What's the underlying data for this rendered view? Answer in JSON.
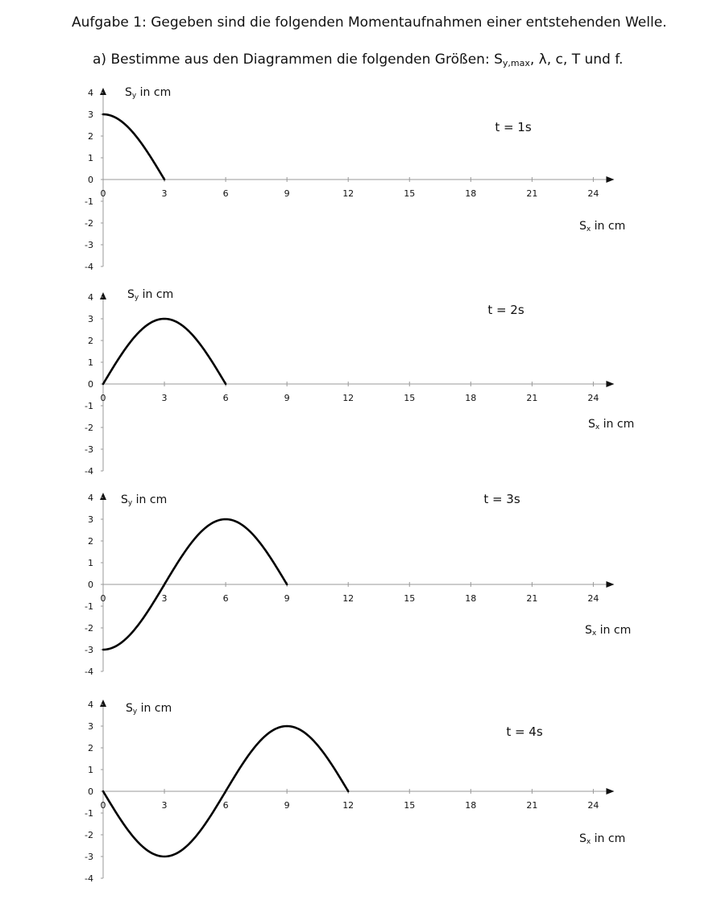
{
  "task": {
    "title": "Aufgabe 1: Gegeben sind die folgenden Momentaufnahmen einer entstehenden Welle.",
    "part_a_prefix": "a)  Bestimme aus den Diagrammen die folgenden Größen: S",
    "part_a_sub": "y,max",
    "part_a_suffix": ", λ, c, T und f."
  },
  "chart_data": [
    {
      "type": "line",
      "time_label": "t = 1s",
      "ylabel": "Sy in cm",
      "xlabel": "Sx in cm",
      "ylim": [
        -4,
        4
      ],
      "xlim": [
        0,
        24
      ],
      "xticks": [
        "0",
        "3",
        "6",
        "9",
        "12",
        "15",
        "18",
        "21",
        "24"
      ],
      "yticks": [
        "4",
        "3",
        "2",
        "1",
        "0",
        "-1",
        "-2",
        "-3",
        "-4"
      ],
      "grid": false,
      "amplitude": 3,
      "wavelength": 12,
      "front_x": 3
    },
    {
      "type": "line",
      "time_label": "t = 2s",
      "ylabel": "Sy in cm",
      "xlabel": "Sx in cm",
      "ylim": [
        -4,
        4
      ],
      "xlim": [
        0,
        24
      ],
      "xticks": [
        "0",
        "3",
        "6",
        "9",
        "12",
        "15",
        "18",
        "21",
        "24"
      ],
      "yticks": [
        "4",
        "3",
        "2",
        "1",
        "0",
        "-1",
        "-2",
        "-3",
        "-4"
      ],
      "grid": false,
      "amplitude": 3,
      "wavelength": 12,
      "front_x": 6
    },
    {
      "type": "line",
      "time_label": "t = 3s",
      "ylabel": "Sy in cm",
      "xlabel": "Sx in cm",
      "ylim": [
        -4,
        4
      ],
      "xlim": [
        0,
        24
      ],
      "xticks": [
        "0",
        "3",
        "6",
        "9",
        "12",
        "15",
        "18",
        "21",
        "24"
      ],
      "yticks": [
        "4",
        "3",
        "2",
        "1",
        "0",
        "-1",
        "-2",
        "-3",
        "-4"
      ],
      "grid": false,
      "amplitude": 3,
      "wavelength": 12,
      "front_x": 9
    },
    {
      "type": "line",
      "time_label": "t = 4s",
      "ylabel": "Sy in cm",
      "xlabel": "Sx in cm",
      "ylim": [
        -4,
        4
      ],
      "xlim": [
        0,
        24
      ],
      "xticks": [
        "0",
        "3",
        "6",
        "9",
        "12",
        "15",
        "18",
        "21",
        "24"
      ],
      "yticks": [
        "4",
        "3",
        "2",
        "1",
        "0",
        "-1",
        "-2",
        "-3",
        "-4"
      ],
      "grid": false,
      "amplitude": 3,
      "wavelength": 12,
      "front_x": 12
    }
  ]
}
